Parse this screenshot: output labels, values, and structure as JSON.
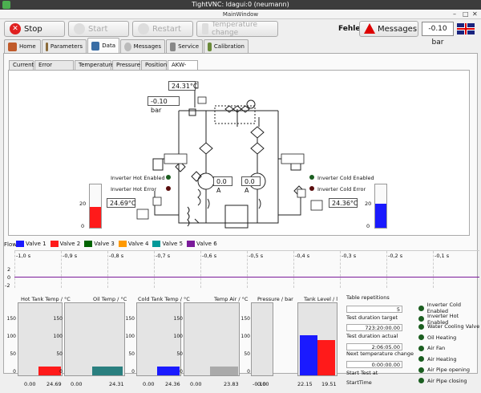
{
  "window": {
    "title": "TightVNC: ldagui:0 (neumann)",
    "subtitle": "MainWindow"
  },
  "toolbar": {
    "stop": "Stop",
    "start": "Start",
    "restart": "Restart",
    "temp_change": "Temperature change",
    "fehler": "Fehler",
    "messages": "Messages",
    "pressure": "-0.10 bar"
  },
  "tabs": [
    "Home",
    "Parameters",
    "Data",
    "Messages",
    "Service",
    "Calibration"
  ],
  "subtabs": [
    "Current",
    "Error Detection",
    "Temperature",
    "Pressure",
    "Position",
    "AKW-HZA"
  ],
  "schematic": {
    "temp_top": "24.31°C",
    "pressure_top": "-0.10 bar",
    "temp_left": "24.69°C",
    "temp_right": "24.36°C",
    "current_left": "0.0 A",
    "current_right": "0.0 A",
    "inv_hot_enabled": "Inverter Hot Enabled",
    "inv_hot_error": "Inverter Hot Error",
    "inv_cold_enabled": "Inverter Cold Enabled",
    "inv_cold_error": "Inverter Cold Error",
    "left_scale": [
      "20",
      "0"
    ],
    "right_scale": [
      "20",
      "0"
    ],
    "left_level": 0.48,
    "right_level": 0.55
  },
  "legend": {
    "flow": "Flow",
    "valves": [
      {
        "name": "Valve 1",
        "color": "#1a1aff"
      },
      {
        "name": "Valve 2",
        "color": "#ff1a1a"
      },
      {
        "name": "Valve 3",
        "color": "#006400"
      },
      {
        "name": "Valve 4",
        "color": "#ff9900"
      },
      {
        "name": "Valve 5",
        "color": "#009999"
      },
      {
        "name": "Valve 6",
        "color": "#7a1a9a"
      }
    ]
  },
  "timeline": {
    "ticks": [
      "-1,0 s",
      "-0,9 s",
      "-0,8 s",
      "-0,7 s",
      "-0,6 s",
      "-0,5 s",
      "-0,4 s",
      "-0,3 s",
      "-0,2 s",
      "-0,1 s"
    ],
    "yticks": [
      "2",
      "0",
      "-2"
    ]
  },
  "gauges": [
    {
      "title": "Hot Tank Temp / °C",
      "min": "0.00",
      "val": "24.69",
      "color": "#ff1a1a",
      "fill": 0.12
    },
    {
      "title": "Oil Temp / °C",
      "min": "0.00",
      "val": "24.31",
      "color": "#2a7f7f",
      "fill": 0.12
    },
    {
      "title": "Cold Tank Temp / °C",
      "min": "0.00",
      "val": "24.36",
      "color": "#1a1aff",
      "fill": 0.12
    },
    {
      "title": "Temp Air / °C",
      "min": "0.00",
      "val": "23.83",
      "color": "#aaaaaa",
      "fill": 0.12
    },
    {
      "title": "Pressure / bar",
      "min": "0.00",
      "val": "-0.10",
      "color": "#aaaaaa",
      "fill": 0.0
    },
    {
      "title": "Tank Level / l",
      "min": "22.15",
      "val": "19.51",
      "color": "#ff1a1a",
      "fill": 0.5
    }
  ],
  "gauge_axis": [
    "150",
    "100",
    "50",
    "0"
  ],
  "info": {
    "table_rep": "Table repetitions",
    "table_rep_val": "5",
    "dur_target": "Test duration target",
    "dur_target_val": "723:20:00.00",
    "dur_actual": "Test duration actual",
    "dur_actual_val": "2:06:05.00",
    "next_temp": "Next temperature change",
    "next_temp_val": "0:00:00.00",
    "start_test": "Start Test at",
    "start_time": "StartTime"
  },
  "status": [
    "Inverter Cold Enabled",
    "Inverter Hot Enabled",
    "Water Cooling Valve",
    "Oil Heating",
    "Air Fan",
    "Air Heating",
    "Air Pipe opening",
    "Air Pipe closing"
  ]
}
